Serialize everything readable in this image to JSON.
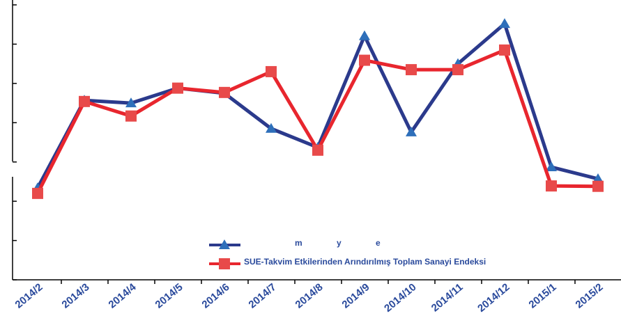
{
  "chart_data": {
    "type": "line",
    "categories": [
      "2014/2",
      "2014/3",
      "2014/4",
      "2014/5",
      "2014/6",
      "2014/7",
      "2014/8",
      "2014/9",
      "2014/10",
      "2014/11",
      "2014/12",
      "2015/1",
      "2015/2"
    ],
    "series": [
      {
        "name": "m y e",
        "color": "#2b3a8c",
        "marker": "triangle",
        "marker_color": "#2e6fba",
        "values": [
          2.34,
          4.57,
          4.5,
          4.88,
          4.75,
          3.85,
          3.37,
          6.21,
          3.76,
          5.5,
          6.52,
          2.87,
          2.57
        ]
      },
      {
        "name": "SUE-Takvim Etkilerinden Arındırılmış Toplam Sanayi Endeksi",
        "color": "#e8262e",
        "marker": "square",
        "marker_color": "#e84a4a",
        "values": [
          2.2,
          4.54,
          4.17,
          4.88,
          4.77,
          5.3,
          3.3,
          5.59,
          5.35,
          5.35,
          5.85,
          2.39,
          2.38
        ]
      }
    ],
    "ylim": [
      0,
      7
    ],
    "yticks": [
      0,
      1,
      2,
      3,
      4,
      5,
      6,
      7
    ]
  }
}
